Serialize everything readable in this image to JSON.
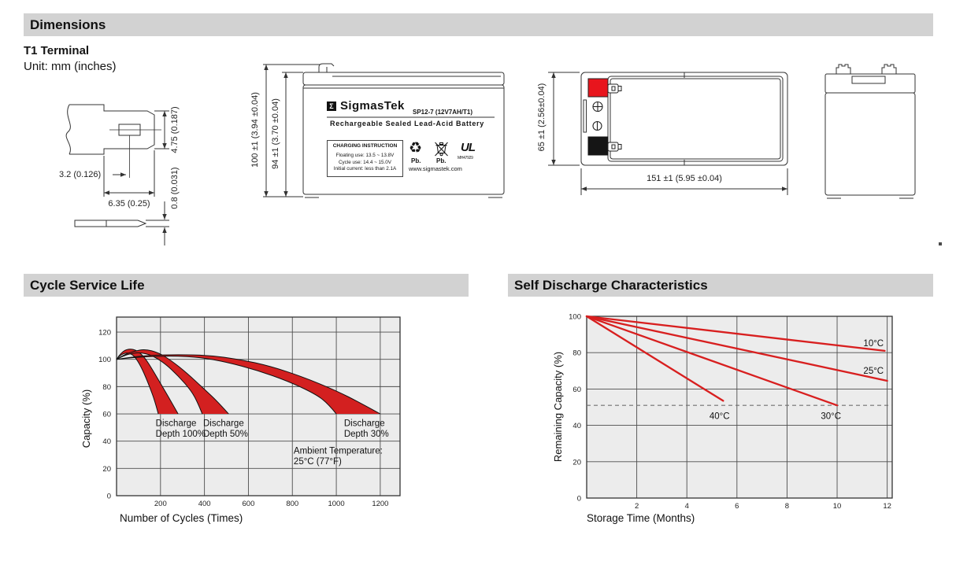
{
  "header": {
    "title": "Dimensions"
  },
  "terminal_info": {
    "title": "T1 Terminal",
    "unit": "Unit: mm (inches)"
  },
  "terminal_drawing": {
    "dim_height": "4.75 (0.187)",
    "dim_offset": "3.2 (0.126)",
    "dim_width": "6.35 (0.25)",
    "dim_thickness": "0.8 (0.031)"
  },
  "front_view": {
    "dim_overall": "100 ±1 (3.94 ±0.04)",
    "dim_body": "94 ±1 (3.70 ±0.04)",
    "logo_sigma": "Σ",
    "brand": "SigmasTek",
    "model": "SP12-7 (12V7AH/T1)",
    "tagline": "Rechargeable Sealed Lead-Acid Battery",
    "charging_title": "CHARGING INSTRUCTION",
    "charging_line1": "Floating use: 13.5 ~ 13.8V",
    "charging_line2": "Cycle use: 14.4 ~ 15.0V",
    "charging_line3": "Initial current: less than 2.1A",
    "pb1": "Pb.",
    "pb2": "Pb.",
    "recycle_glyph": "♻",
    "ul_mark": "UL",
    "ul_code": "MH47929",
    "website": "www.sigmastek.com"
  },
  "top_view": {
    "dim_height": "65 ±1 (2.56±0.04)",
    "dim_length": "151 ±1 (5.95 ±0.04)"
  },
  "cycle_section": {
    "title": "Cycle Service Life"
  },
  "self_section": {
    "title": "Self Discharge Characteristics"
  },
  "colors": {
    "bar_gray": "#d2d2d2",
    "plot_bg": "#ececec",
    "grid": "#4d4d4d",
    "border": "#333333",
    "band_red": "#d32020",
    "line_red": "#d81f1f",
    "terminal_red": "#e8151d",
    "dashed_gray": "#707070"
  },
  "chart_data": [
    {
      "type": "area",
      "title": "Cycle Service Life",
      "xlabel": "Number of Cycles (Times)",
      "ylabel": "Capacity (%)",
      "xlim": [
        0,
        1290
      ],
      "ylim": [
        0,
        131
      ],
      "x_ticks": [
        200,
        400,
        600,
        800,
        1000,
        1200
      ],
      "y_ticks": [
        0,
        20,
        40,
        60,
        80,
        100,
        120
      ],
      "grid": true,
      "legend": "none",
      "series": [
        {
          "name": "Discharge Depth 100%",
          "upper": [
            [
              0,
              100
            ],
            [
              20,
              105
            ],
            [
              55,
              108
            ],
            [
              95,
              106.5
            ],
            [
              130,
              101
            ],
            [
              165,
              92
            ],
            [
              205,
              81
            ],
            [
              245,
              70
            ],
            [
              280,
              60
            ]
          ],
          "lower": [
            [
              0,
              100
            ],
            [
              15,
              103
            ],
            [
              45,
              105
            ],
            [
              75,
              103.5
            ],
            [
              100,
              98
            ],
            [
              125,
              90
            ],
            [
              155,
              78
            ],
            [
              175,
              69
            ],
            [
              190,
              60
            ]
          ]
        },
        {
          "name": "Discharge Depth 50%",
          "upper": [
            [
              0,
              100
            ],
            [
              35,
              103.5
            ],
            [
              80,
              106
            ],
            [
              130,
              107.5
            ],
            [
              190,
              105
            ],
            [
              250,
              99
            ],
            [
              320,
              90
            ],
            [
              400,
              78
            ],
            [
              460,
              69
            ],
            [
              510,
              60
            ]
          ],
          "lower": [
            [
              0,
              100
            ],
            [
              30,
              102.5
            ],
            [
              70,
              104.5
            ],
            [
              110,
              105
            ],
            [
              160,
              103
            ],
            [
              220,
              97
            ],
            [
              280,
              88
            ],
            [
              340,
              77
            ],
            [
              370,
              68
            ],
            [
              390,
              60
            ]
          ]
        },
        {
          "name": "Discharge Depth 30%",
          "upper": [
            [
              0,
              100
            ],
            [
              60,
              101.5
            ],
            [
              150,
              103
            ],
            [
              280,
              103.5
            ],
            [
              420,
              103
            ],
            [
              560,
              100
            ],
            [
              700,
              95
            ],
            [
              850,
              87
            ],
            [
              1000,
              77
            ],
            [
              1110,
              68
            ],
            [
              1200,
              60
            ]
          ],
          "lower": [
            [
              0,
              100
            ],
            [
              50,
              101
            ],
            [
              140,
              102
            ],
            [
              260,
              102.5
            ],
            [
              380,
              101.5
            ],
            [
              500,
              98
            ],
            [
              640,
              92
            ],
            [
              780,
              84
            ],
            [
              900,
              75
            ],
            [
              960,
              68
            ],
            [
              1000,
              60
            ]
          ]
        }
      ],
      "annotations": [
        {
          "lines": [
            "Discharge",
            "Depth 100%"
          ],
          "x": 178,
          "y": 51
        },
        {
          "lines": [
            "Discharge",
            "Depth 50%"
          ],
          "x": 394,
          "y": 51
        },
        {
          "lines": [
            "Discharge",
            "Depth 30%"
          ],
          "x": 1035,
          "y": 51
        },
        {
          "lines": [
            "Ambient Temperature:",
            "25°C (77°F)"
          ],
          "x": 806,
          "y": 31
        }
      ]
    },
    {
      "type": "line",
      "title": "Self Discharge Characteristics",
      "xlabel": "Storage Time (Months)",
      "ylabel": "Remaining Capacity (%)",
      "xlim": [
        0,
        12.2
      ],
      "ylim": [
        0,
        100
      ],
      "x_ticks": [
        2,
        4,
        6,
        8,
        10,
        12
      ],
      "y_ticks": [
        0,
        20,
        40,
        60,
        80,
        100
      ],
      "grid": true,
      "threshold_line": {
        "y": 51,
        "style": "dashed"
      },
      "series": [
        {
          "name": "10°C",
          "points": [
            [
              0,
              100
            ],
            [
              11.9,
              81
            ]
          ],
          "label_pos": [
            11.05,
            83.5
          ]
        },
        {
          "name": "25°C",
          "points": [
            [
              0,
              100
            ],
            [
              12,
              64.5
            ]
          ],
          "label_pos": [
            11.05,
            68.5
          ]
        },
        {
          "name": "30°C",
          "points": [
            [
              0,
              100
            ],
            [
              10,
              51
            ]
          ],
          "label_pos": [
            9.35,
            43.5
          ]
        },
        {
          "name": "40°C",
          "points": [
            [
              0,
              100
            ],
            [
              5.45,
              53.5
            ]
          ],
          "label_pos": [
            4.9,
            43.5
          ]
        }
      ]
    }
  ]
}
